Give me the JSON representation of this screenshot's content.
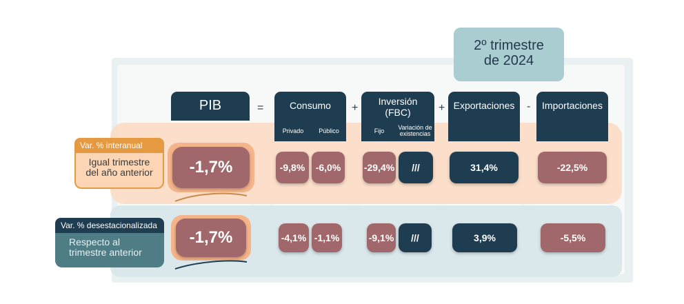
{
  "title": {
    "line1": "2º trimestre",
    "line2": "de 2024"
  },
  "headers": {
    "pib": "PIB",
    "consumo": "Consumo",
    "inversion_l1": "Inversión",
    "inversion_l2": "(FBC)",
    "exportaciones": "Exportaciones",
    "importaciones": "Importaciones"
  },
  "subheaders": {
    "privado": "Privado",
    "publico": "Público",
    "fijo": "Fijo",
    "variacion_l1": "Variación de",
    "variacion_l2": "existencias"
  },
  "operators": {
    "equals": "=",
    "plus1": "+",
    "plus2": "+",
    "minus": "-"
  },
  "rows": {
    "interanual": {
      "tag": "Var. % interanual",
      "desc_l1": "Igual trimestre",
      "desc_l2": "del año anterior",
      "pib": "-1,7%",
      "privado": "-9,8%",
      "publico": "-6,0%",
      "fijo": "-29,4%",
      "variacion": "///",
      "exportaciones": "31,4%",
      "importaciones": "-22,5%"
    },
    "desestacionalizada": {
      "tag": "Var. % desestacionalizada",
      "desc_l1": "Respecto al",
      "desc_l2": "trimestre anterior",
      "pib": "-1,7%",
      "privado": "-4,1%",
      "publico": "-1,1%",
      "fijo": "-9,1%",
      "variacion": "///",
      "exportaciones": "3,9%",
      "importaciones": "-5,5%"
    }
  },
  "colors": {
    "navy": "#1f3d50",
    "red_value": "#a0686a",
    "orange_accent": "#e59a42",
    "teal_accent": "#4f7d86",
    "title_box": "#a9cdd0"
  }
}
